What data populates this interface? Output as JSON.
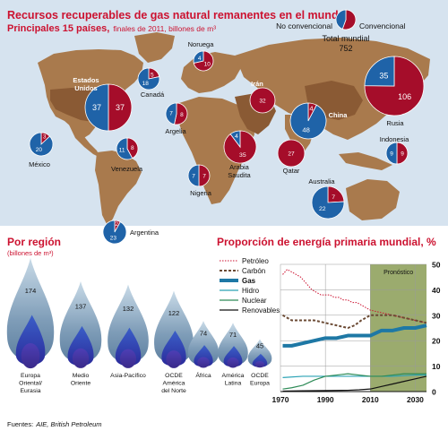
{
  "header": {
    "title": "Recursos recuperables de gas natural remanentes en el mundo",
    "subtitle_main": "Principales 15 países,",
    "subtitle_detail": "finales de 2011, billones de m³"
  },
  "legend": {
    "non_conventional": "No convencional",
    "conventional": "Convencional",
    "total_label": "Total mundial",
    "total_value": "752"
  },
  "colors": {
    "conventional": "#a50d2a",
    "non_conventional": "#1f63a8",
    "land": "#a97a4d",
    "highlight_land": "#8a5a34",
    "ocean": "#d6e3ef",
    "accent_title": "#cc1230"
  },
  "chart_data": [
    {
      "type": "pie",
      "title": "Recursos recuperables de gas natural remanentes en el mundo",
      "subtitle": "Principales 15 países, finales de 2011, billones de m³",
      "series_names": [
        "No convencional",
        "Convencional"
      ],
      "countries": [
        {
          "name": "Estados Unidos",
          "non_conventional": 37,
          "conventional": 37
        },
        {
          "name": "Canadá",
          "non_conventional": 18,
          "conventional": 5
        },
        {
          "name": "México",
          "non_conventional": 20,
          "conventional": 3
        },
        {
          "name": "Venezuela",
          "non_conventional": 11,
          "conventional": 8
        },
        {
          "name": "Argentina",
          "non_conventional": 23,
          "conventional": 2
        },
        {
          "name": "Noruega",
          "non_conventional": 4,
          "conventional": 10
        },
        {
          "name": "Argelia",
          "non_conventional": 7,
          "conventional": 8
        },
        {
          "name": "Nigeria",
          "non_conventional": 7,
          "conventional": 7
        },
        {
          "name": "Irán",
          "non_conventional": 0,
          "conventional": 32
        },
        {
          "name": "Arabia Saudita",
          "non_conventional": 4,
          "conventional": 35
        },
        {
          "name": "Qatar",
          "non_conventional": 0,
          "conventional": 27
        },
        {
          "name": "Rusia",
          "non_conventional": 35,
          "conventional": 106
        },
        {
          "name": "China",
          "non_conventional": 48,
          "conventional": 4
        },
        {
          "name": "Indonesia",
          "non_conventional": 9,
          "conventional": 9
        },
        {
          "name": "Australia",
          "non_conventional": 22,
          "conventional": 7
        }
      ],
      "world_total": 752
    },
    {
      "type": "bar",
      "title": "Por región",
      "subtitle": "(billones de m³)",
      "categories": [
        "Europa Oriental/ Eurasia",
        "Medio Oriente",
        "Asia-Pacífico",
        "OCDE América del Norte",
        "África",
        "América Latina",
        "OCDE Europa"
      ],
      "category_lines": [
        [
          "Europa",
          "Oriental/",
          "Eurasia"
        ],
        [
          "Medio",
          "Oriente"
        ],
        [
          "Asia-Pacífico"
        ],
        [
          "OCDE",
          "América",
          "del Norte"
        ],
        [
          "África"
        ],
        [
          "América",
          "Latina"
        ],
        [
          "OCDE",
          "Europa"
        ]
      ],
      "values": [
        174,
        137,
        132,
        122,
        74,
        71,
        45
      ]
    },
    {
      "type": "line",
      "title": "Proporción de energía primaria mundial, %",
      "x_ticks": [
        1970,
        1990,
        2010,
        2030
      ],
      "y_ticks": [
        0,
        10,
        20,
        30,
        40,
        50
      ],
      "xlim": [
        1970,
        2035
      ],
      "ylim": [
        0,
        50
      ],
      "forecast_label": "Pronóstico",
      "forecast_start": 2010,
      "grid": true,
      "legend_position": "left",
      "series": [
        {
          "name": "Petróleo",
          "color": "#cc1230",
          "style": "dotted",
          "x": [
            1971,
            1973,
            1975,
            1977,
            1979,
            1980,
            1982,
            1984,
            1986,
            1988,
            1990,
            1992,
            1994,
            1996,
            1998,
            2000,
            2002,
            2004,
            2006,
            2008,
            2010,
            2015,
            2020,
            2025,
            2030,
            2035
          ],
          "y": [
            46,
            48,
            47,
            46,
            45,
            44,
            42,
            40,
            39,
            38,
            38,
            38,
            37,
            37,
            36,
            36,
            35,
            35,
            34,
            33,
            32,
            31,
            30,
            29,
            28,
            27
          ]
        },
        {
          "name": "Carbón",
          "color": "#6b4a34",
          "style": "dashed",
          "x": [
            1971,
            1975,
            1980,
            1985,
            1990,
            1995,
            2000,
            2003,
            2006,
            2010,
            2015,
            2020,
            2025,
            2030,
            2035
          ],
          "y": [
            30,
            28,
            28,
            28,
            27,
            26,
            25,
            26,
            28,
            30,
            30,
            30,
            29,
            28,
            27
          ]
        },
        {
          "name": "Gas",
          "color": "#1e78a5",
          "style": "thick",
          "x": [
            1971,
            1975,
            1980,
            1985,
            1990,
            1995,
            2000,
            2005,
            2010,
            2015,
            2020,
            2025,
            2030,
            2035
          ],
          "y": [
            18,
            18,
            19,
            20,
            21,
            21,
            22,
            22,
            22,
            24,
            24,
            25,
            25,
            26
          ]
        },
        {
          "name": "Hidro",
          "color": "#2aa2b5",
          "style": "solid",
          "x": [
            1971,
            1980,
            1990,
            2000,
            2010,
            2020,
            2030,
            2035
          ],
          "y": [
            5.5,
            6,
            6,
            6,
            6,
            6,
            6.5,
            6.5
          ]
        },
        {
          "name": "Nuclear",
          "color": "#2e8b57",
          "style": "solid",
          "x": [
            1971,
            1975,
            1980,
            1985,
            1990,
            1995,
            2000,
            2005,
            2010,
            2015,
            2020,
            2025,
            2030,
            2035
          ],
          "y": [
            1,
            1.5,
            2.5,
            4.5,
            6,
            6.5,
            7,
            6.5,
            6,
            6,
            6.5,
            7,
            7,
            7
          ]
        },
        {
          "name": "Renovables",
          "color": "#111111",
          "style": "solid",
          "x": [
            1971,
            1980,
            1990,
            2000,
            2005,
            2010,
            2015,
            2020,
            2025,
            2030,
            2035
          ],
          "y": [
            0.2,
            0.3,
            0.4,
            0.5,
            0.7,
            1,
            2,
            3,
            4,
            5,
            6
          ]
        }
      ]
    }
  ],
  "footer": {
    "sources_label": "Fuentes:",
    "sources_text": "AIE, British Petroleum"
  }
}
